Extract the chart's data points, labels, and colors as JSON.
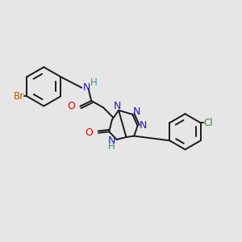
{
  "background_color": "#e6e6e6",
  "fig_width": 3.0,
  "fig_height": 3.0,
  "dpi": 100,
  "bond_lw": 1.4,
  "colors": {
    "bond": "#1a1a1a",
    "Br": "#b35900",
    "Cl": "#2d8c2d",
    "O": "#dd0000",
    "N": "#1a1acc",
    "H": "#2a9090"
  }
}
